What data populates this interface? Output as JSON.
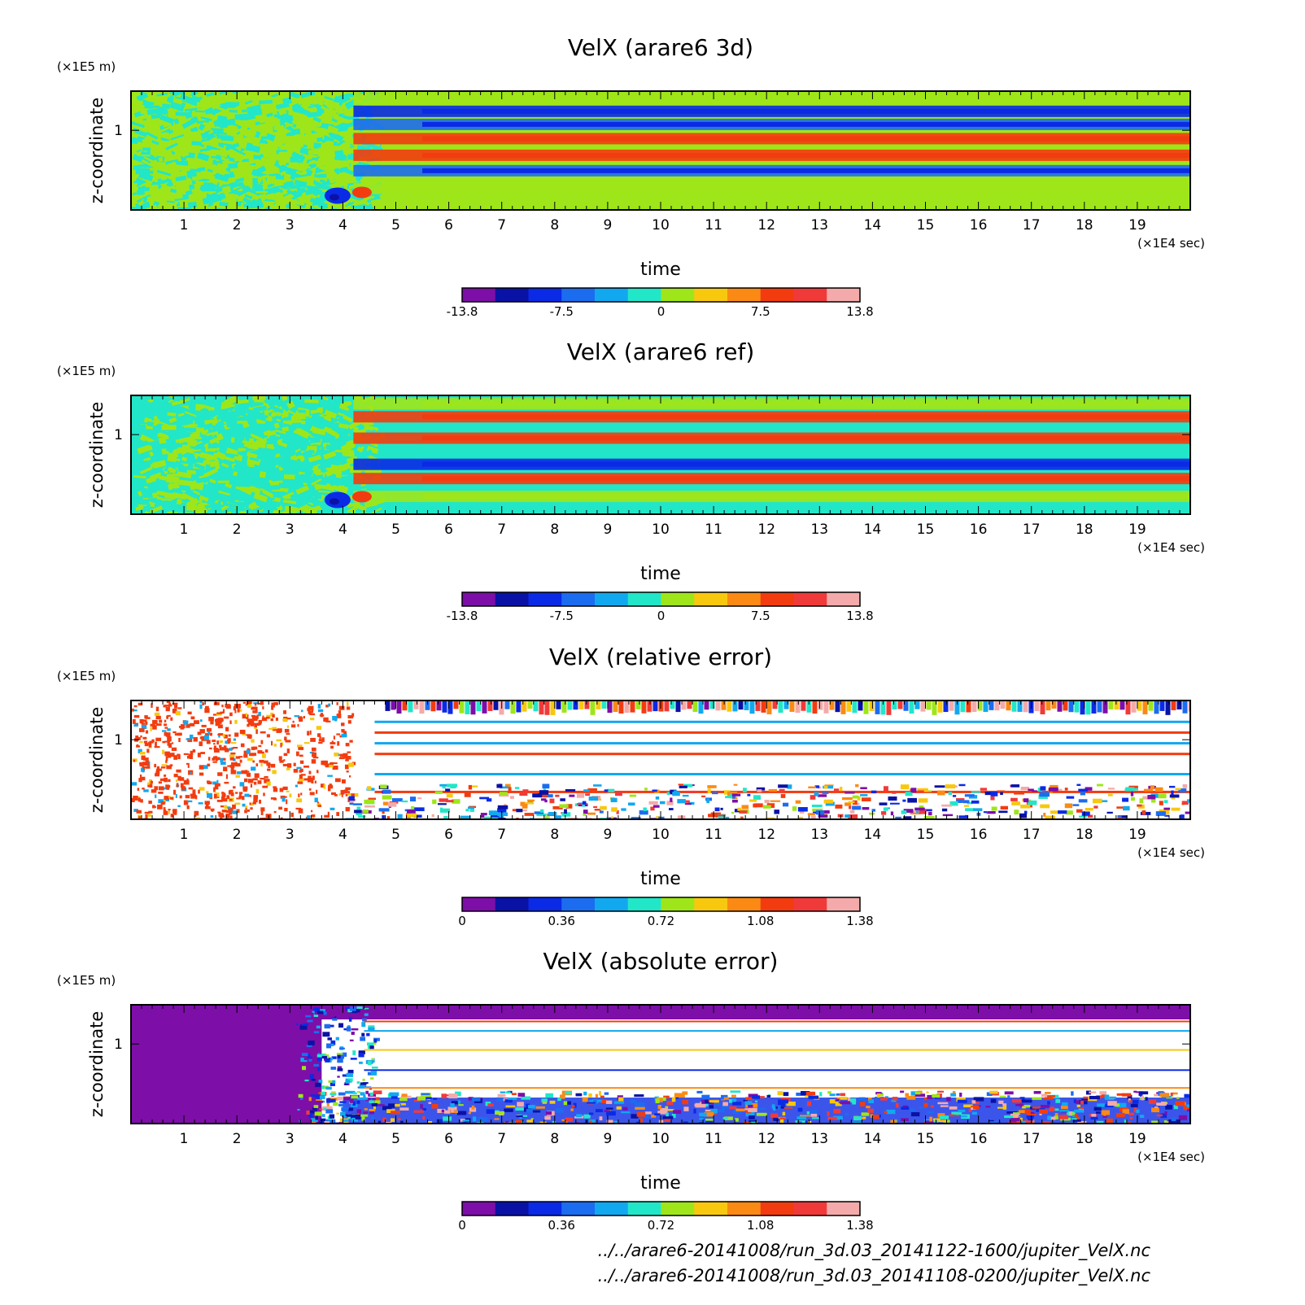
{
  "figure": {
    "footer_lines": [
      "../../arare6-20141008/run_3d.03_20141122-1600/jupiter_VelX.nc",
      "../../arare6-20141008/run_3d.03_20141108-0200/jupiter_VelX.nc"
    ]
  },
  "chart_data": [
    {
      "type": "heatmap",
      "title": "VelX (arare6 3d)",
      "xlabel": "time",
      "ylabel": "z-coordinate",
      "x_unit": "(×1E4 sec)",
      "y_unit": "(×1E5 m)",
      "xlim": [
        0,
        20
      ],
      "xticks": [
        1,
        2,
        3,
        4,
        5,
        6,
        7,
        8,
        9,
        10,
        11,
        12,
        13,
        14,
        15,
        16,
        17,
        18,
        19
      ],
      "yticks": [
        1
      ],
      "colorbar": {
        "labels": [
          "-13.8",
          "-7.5",
          "0",
          "7.5",
          "13.8"
        ],
        "colors": [
          "#7d0ea8",
          "#0a12a5",
          "#0a2ae6",
          "#1c6cf0",
          "#12a8ef",
          "#22e6c8",
          "#9ee619",
          "#f8c80e",
          "#fa8a14",
          "#f23c10",
          "#f03a3a",
          "#f4aaaa"
        ]
      },
      "bands": [
        {
          "z": 0.93,
          "value": 0
        },
        {
          "z": 0.83,
          "value": -7.5
        },
        {
          "z": 0.72,
          "value": -6.5
        },
        {
          "z": 0.6,
          "value": 7.5
        },
        {
          "z": 0.46,
          "value": 7.5
        },
        {
          "z": 0.33,
          "value": -6.5
        },
        {
          "z": 0.18,
          "value": 0
        }
      ]
    },
    {
      "type": "heatmap",
      "title": "VelX (arare6 ref)",
      "xlabel": "time",
      "ylabel": "z-coordinate",
      "x_unit": "(×1E4 sec)",
      "y_unit": "(×1E5 m)",
      "xlim": [
        0,
        20
      ],
      "xticks": [
        1,
        2,
        3,
        4,
        5,
        6,
        7,
        8,
        9,
        10,
        11,
        12,
        13,
        14,
        15,
        16,
        17,
        18,
        19
      ],
      "yticks": [
        1
      ],
      "colorbar": {
        "labels": [
          "-13.8",
          "-7.5",
          "0",
          "7.5",
          "13.8"
        ],
        "colors": [
          "#7d0ea8",
          "#0a12a5",
          "#0a2ae6",
          "#1c6cf0",
          "#12a8ef",
          "#22e6c8",
          "#9ee619",
          "#f8c80e",
          "#fa8a14",
          "#f23c10",
          "#f03a3a",
          "#f4aaaa"
        ]
      },
      "bands": [
        {
          "z": 0.93,
          "value": 0
        },
        {
          "z": 0.82,
          "value": 7.5
        },
        {
          "z": 0.64,
          "value": 7.5
        },
        {
          "z": 0.42,
          "value": -7.5
        },
        {
          "z": 0.3,
          "value": 7.5
        },
        {
          "z": 0.15,
          "value": 0
        }
      ]
    },
    {
      "type": "heatmap",
      "title": "VelX (relative error)",
      "xlabel": "time",
      "ylabel": "z-coordinate",
      "x_unit": "(×1E4 sec)",
      "y_unit": "(×1E5 m)",
      "xlim": [
        0,
        20
      ],
      "xticks": [
        1,
        2,
        3,
        4,
        5,
        6,
        7,
        8,
        9,
        10,
        11,
        12,
        13,
        14,
        15,
        16,
        17,
        18,
        19
      ],
      "yticks": [
        1
      ],
      "colorbar": {
        "labels": [
          "0",
          "0.36",
          "0.72",
          "1.08",
          "1.38"
        ],
        "colors": [
          "#7d0ea8",
          "#0a12a5",
          "#0a2ae6",
          "#1c6cf0",
          "#12a8ef",
          "#22e6c8",
          "#9ee619",
          "#f8c80e",
          "#fa8a14",
          "#f23c10",
          "#f03a3a",
          "#f4aaaa"
        ]
      }
    },
    {
      "type": "heatmap",
      "title": "VelX (absolute error)",
      "xlabel": "time",
      "ylabel": "z-coordinate",
      "x_unit": "(×1E4 sec)",
      "y_unit": "(×1E5 m)",
      "xlim": [
        0,
        20
      ],
      "xticks": [
        1,
        2,
        3,
        4,
        5,
        6,
        7,
        8,
        9,
        10,
        11,
        12,
        13,
        14,
        15,
        16,
        17,
        18,
        19
      ],
      "yticks": [
        1
      ],
      "colorbar": {
        "labels": [
          "0",
          "0.36",
          "0.72",
          "1.08",
          "1.38"
        ],
        "colors": [
          "#7d0ea8",
          "#0a12a5",
          "#0a2ae6",
          "#1c6cf0",
          "#12a8ef",
          "#22e6c8",
          "#9ee619",
          "#f8c80e",
          "#fa8a14",
          "#f23c10",
          "#f03a3a",
          "#f4aaaa"
        ]
      }
    }
  ]
}
